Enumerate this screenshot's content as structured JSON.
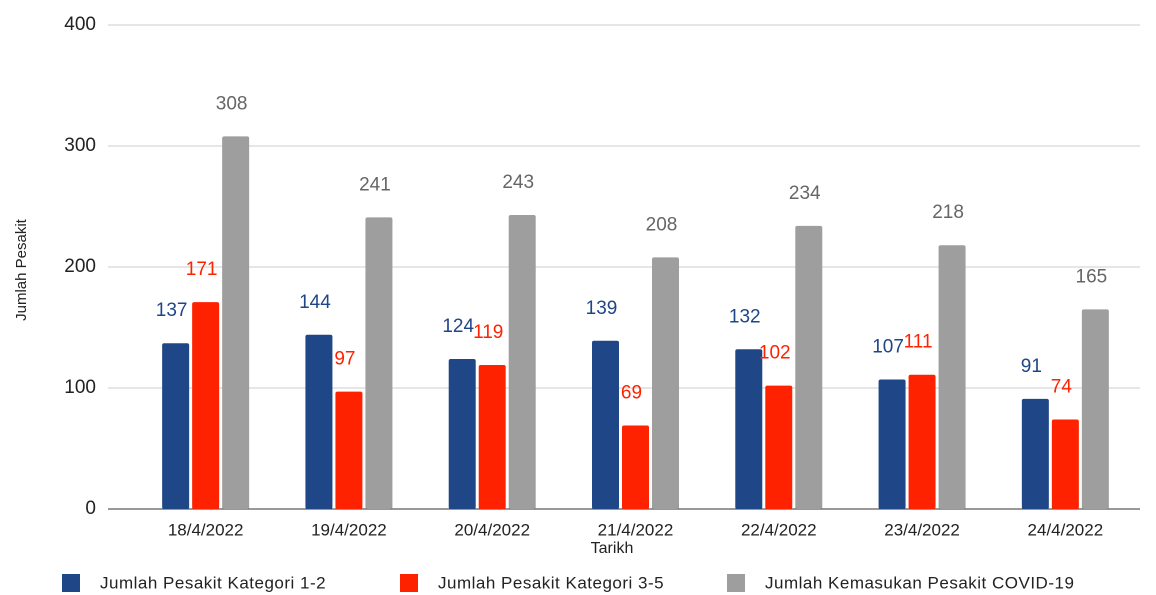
{
  "chart_data": {
    "type": "bar",
    "x_label": "Tarikh",
    "y_label": "Jumlah Pesakit",
    "categories": [
      "18/4/2022",
      "19/4/2022",
      "20/4/2022",
      "21/4/2022",
      "22/4/2022",
      "23/4/2022",
      "24/4/2022"
    ],
    "series": [
      {
        "name": "Jumlah Pesakit Kategori 1-2",
        "color": "#1f4687",
        "values": [
          137,
          144,
          124,
          139,
          132,
          107,
          91
        ]
      },
      {
        "name": "Jumlah Pesakit Kategori 3-5",
        "color": "#ff2200",
        "values": [
          171,
          97,
          119,
          69,
          102,
          111,
          74
        ]
      },
      {
        "name": "Jumlah Kemasukan Pesakit COVID-19",
        "color": "#9e9e9e",
        "values": [
          308,
          241,
          243,
          208,
          234,
          218,
          165
        ]
      }
    ],
    "ylim": [
      0,
      400
    ],
    "yticks": [
      0,
      100,
      200,
      300,
      400
    ],
    "grid": true,
    "legend": "bottom"
  }
}
